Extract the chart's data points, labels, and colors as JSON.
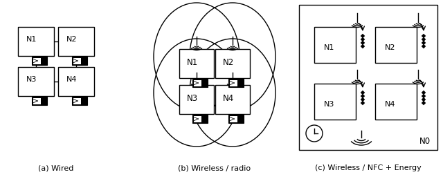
{
  "fig_width": 6.4,
  "fig_height": 2.59,
  "dpi": 100,
  "background_color": "#ffffff",
  "label_a": "(a) Wired",
  "label_b": "(b) Wireless / radio",
  "label_c": "(c) Wireless / NFC + Energy"
}
